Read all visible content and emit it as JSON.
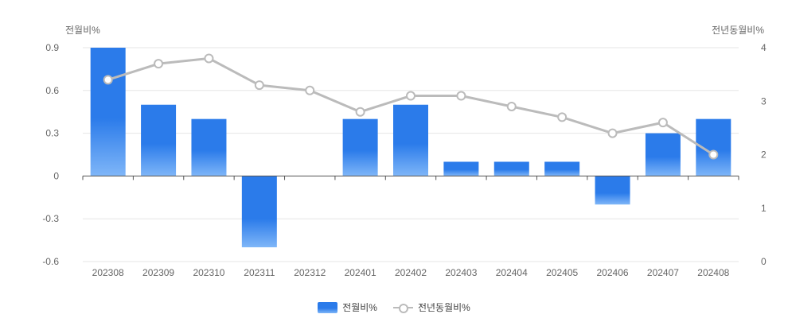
{
  "chart_data": {
    "type": "bar+line",
    "categories": [
      "202308",
      "202309",
      "202310",
      "202311",
      "202312",
      "202401",
      "202402",
      "202403",
      "202404",
      "202405",
      "202406",
      "202407",
      "202408"
    ],
    "series": [
      {
        "name": "전월비%",
        "type": "bar",
        "axis": "left",
        "values": [
          0.9,
          0.5,
          0.4,
          -0.5,
          0.0,
          0.4,
          0.5,
          0.1,
          0.1,
          0.1,
          -0.2,
          0.3,
          0.4
        ]
      },
      {
        "name": "전년동월비%",
        "type": "line",
        "axis": "right",
        "values": [
          3.4,
          3.7,
          3.8,
          3.3,
          3.2,
          2.8,
          3.1,
          3.1,
          2.9,
          2.7,
          2.4,
          2.6,
          2.0
        ]
      }
    ],
    "left_axis": {
      "label": "전월비%",
      "ylim": [
        -0.6,
        0.9
      ],
      "ticks": [
        "0.9",
        "0.6",
        "0.3",
        "0",
        "-0.3",
        "-0.6"
      ],
      "tick_values": [
        0.9,
        0.6,
        0.3,
        0,
        -0.3,
        -0.6
      ]
    },
    "right_axis": {
      "label": "전년동월비%",
      "ylim": [
        0,
        4
      ],
      "ticks": [
        "4",
        "3",
        "2",
        "1",
        "0"
      ],
      "tick_values": [
        4,
        3,
        2,
        1,
        0
      ]
    },
    "grid": true,
    "legend_position": "bottom-center",
    "colors": {
      "bar_top": "#2b7bea",
      "bar_bottom": "#7fb6f8",
      "line": "#bbbbbb",
      "grid": "#e6e6e6",
      "axis": "#555555"
    }
  },
  "legend": {
    "bar_label": "전월비%",
    "line_label": "전년동월비%"
  }
}
